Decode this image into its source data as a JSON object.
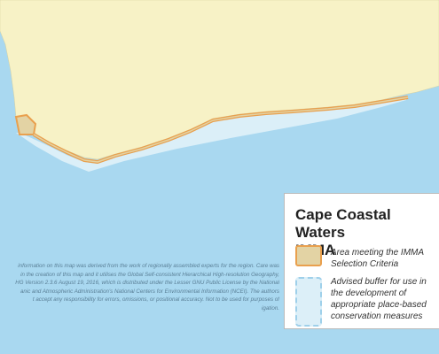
{
  "legend": {
    "title_lines": [
      "Cape Coastal Waters",
      "IMMA"
    ],
    "items": [
      {
        "lines": [
          "Area meeting the IMMA",
          "Selection Criteria"
        ]
      },
      {
        "lines": [
          "Advised buffer for use in",
          "the development of",
          "appropriate place-based",
          "conservation measures"
        ]
      }
    ]
  },
  "disclaimer_lines": [
    "information on this map was derived from the work of regionally assembled experts for the region. Care was",
    "in the creation of this map and it utilises the Global Self-consistent Hierarchical High-resolution Geography,",
    "HG Version 2.3.6 August 19, 2016, which is distributed under the Lesser GNU Public License by the National",
    "anic and Atmospheric Administration's National Centers for Environmental Information (NCEI). The authors",
    "t accept any responsibility for errors, omissions, or positional accuracy. Not to be used for purposes of",
    "igation."
  ]
}
